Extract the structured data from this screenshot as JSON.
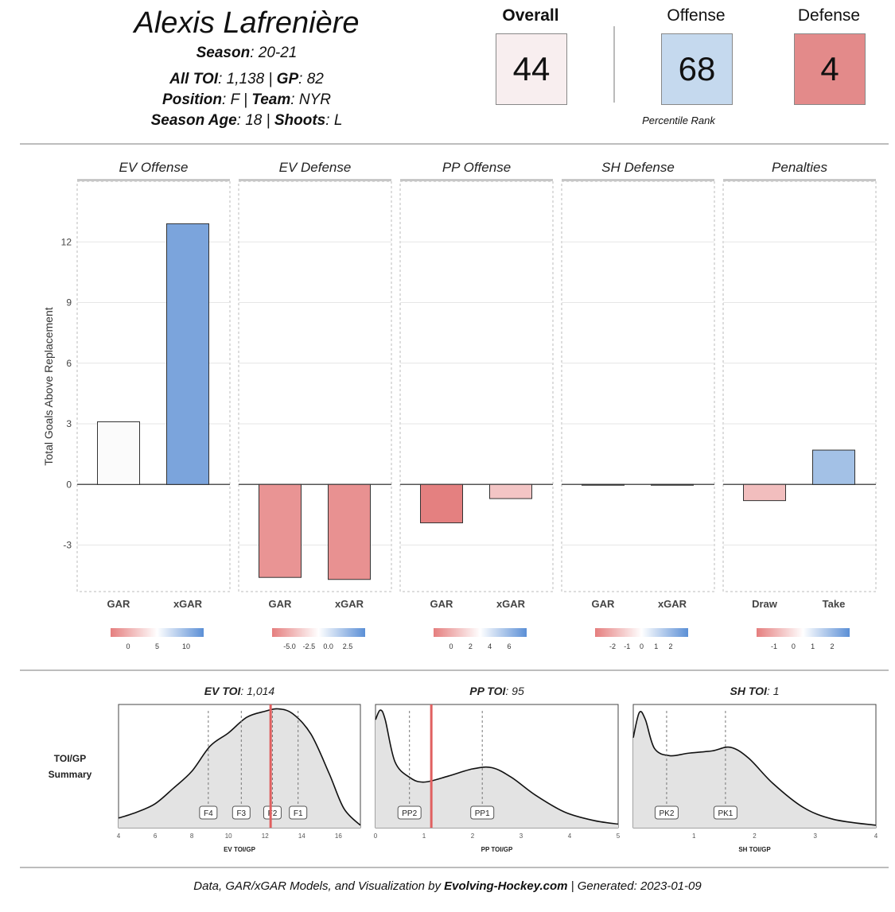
{
  "player": {
    "name": "Alexis Lafrenière",
    "season_label": "Season",
    "season": "20-21",
    "toi_label": "All TOI",
    "toi": "1,138",
    "gp_label": "GP",
    "gp": "82",
    "position_label": "Position",
    "position": "F",
    "team_label": "Team",
    "team": "NYR",
    "age_label": "Season Age",
    "age": "18",
    "shoots_label": "Shoots",
    "shoots": "L"
  },
  "ranks": {
    "overall_label": "Overall",
    "overall": "44",
    "offense_label": "Offense",
    "offense": "68",
    "defense_label": "Defense",
    "defense": "4",
    "subtitle": "Percentile Rank",
    "colors": {
      "overall": "#f8eeef",
      "offense": "#c5d9ee",
      "defense": "#e38a8a"
    }
  },
  "chart_data": [
    {
      "type": "bar",
      "ylabel": "Total Goals Above Replacement",
      "ylim": [
        -5.3,
        15
      ],
      "yticks": [
        -3,
        0,
        3,
        6,
        9,
        12
      ],
      "grid": true,
      "facets": [
        {
          "title": "EV Offense",
          "categories": [
            "GAR",
            "xGAR"
          ],
          "values": [
            3.1,
            12.9
          ],
          "colors": [
            "#fbfbfb",
            "#7ba4dc"
          ],
          "legend": {
            "ticks": [
              "0",
              "5",
              "10"
            ],
            "stops": [
              "#e57e7e",
              "#ffffff",
              "#5b8fd6"
            ]
          }
        },
        {
          "title": "EV Defense",
          "categories": [
            "GAR",
            "xGAR"
          ],
          "values": [
            -4.6,
            -4.7
          ],
          "colors": [
            "#e99494",
            "#e89191"
          ],
          "legend": {
            "ticks": [
              "-5.0",
              "-2.5",
              "0.0",
              "2.5"
            ],
            "stops": [
              "#e57e7e",
              "#ffffff",
              "#5b8fd6"
            ]
          }
        },
        {
          "title": "PP Offense",
          "categories": [
            "GAR",
            "xGAR"
          ],
          "values": [
            -1.9,
            -0.7
          ],
          "colors": [
            "#e48080",
            "#f3c5c5"
          ],
          "legend": {
            "ticks": [
              "0",
              "2",
              "4",
              "6"
            ],
            "stops": [
              "#e57e7e",
              "#ffffff",
              "#5b8fd6"
            ]
          }
        },
        {
          "title": "SH Defense",
          "categories": [
            "GAR",
            "xGAR"
          ],
          "values": [
            0.0,
            0.0
          ],
          "colors": [
            "#e57e7e",
            "#e57e7e"
          ],
          "legend": {
            "ticks": [
              "-2",
              "-1",
              "0",
              "1",
              "2"
            ],
            "stops": [
              "#e57e7e",
              "#ffffff",
              "#5b8fd6"
            ]
          }
        },
        {
          "title": "Penalties",
          "categories": [
            "Draw",
            "Take"
          ],
          "values": [
            -0.8,
            1.7
          ],
          "colors": [
            "#f2bebe",
            "#a3c1e6"
          ],
          "legend": {
            "ticks": [
              "-1",
              "0",
              "1",
              "2"
            ],
            "stops": [
              "#e57e7e",
              "#ffffff",
              "#5b8fd6"
            ]
          }
        }
      ]
    },
    {
      "type": "area",
      "side_label_1": "TOI/GP",
      "side_label_2": "Summary",
      "panels": [
        {
          "title_bold": "EV TOI",
          "title_value": "1,014",
          "xlabel": "EV TOI/GP",
          "xlim": [
            4,
            17.2
          ],
          "xticks": [
            4,
            6,
            8,
            10,
            12,
            14,
            16
          ],
          "player_value": 12.3,
          "refs": [
            {
              "label": "F4",
              "x": 8.9
            },
            {
              "label": "F3",
              "x": 10.7
            },
            {
              "label": "F2",
              "x": 12.4
            },
            {
              "label": "F1",
              "x": 13.8
            }
          ],
          "density": [
            [
              4,
              0.08
            ],
            [
              5,
              0.13
            ],
            [
              6,
              0.2
            ],
            [
              7,
              0.33
            ],
            [
              8,
              0.47
            ],
            [
              9,
              0.68
            ],
            [
              10,
              0.79
            ],
            [
              11,
              0.92
            ],
            [
              12,
              0.97
            ],
            [
              12.7,
              0.99
            ],
            [
              13.5,
              0.95
            ],
            [
              14.5,
              0.78
            ],
            [
              15.5,
              0.45
            ],
            [
              16.3,
              0.16
            ],
            [
              17.2,
              0.02
            ]
          ]
        },
        {
          "title_bold": "PP TOI",
          "title_value": "95",
          "xlabel": "PP TOI/GP",
          "xlim": [
            0,
            5
          ],
          "xticks": [
            0,
            1,
            2,
            3,
            4,
            5
          ],
          "player_value": 1.15,
          "refs": [
            {
              "label": "PP2",
              "x": 0.7
            },
            {
              "label": "PP1",
              "x": 2.2
            }
          ],
          "density": [
            [
              0,
              0.9
            ],
            [
              0.1,
              0.98
            ],
            [
              0.2,
              0.9
            ],
            [
              0.4,
              0.55
            ],
            [
              0.7,
              0.42
            ],
            [
              1.0,
              0.38
            ],
            [
              1.5,
              0.43
            ],
            [
              2.0,
              0.49
            ],
            [
              2.4,
              0.5
            ],
            [
              2.8,
              0.42
            ],
            [
              3.3,
              0.27
            ],
            [
              3.9,
              0.13
            ],
            [
              4.5,
              0.06
            ],
            [
              5,
              0.03
            ]
          ]
        },
        {
          "title_bold": "SH TOI",
          "title_value": "1",
          "xlabel": "SH TOI/GP",
          "xlim": [
            0,
            4
          ],
          "xticks": [
            1,
            2,
            3,
            4
          ],
          "player_value": null,
          "refs": [
            {
              "label": "PK2",
              "x": 0.55
            },
            {
              "label": "PK1",
              "x": 1.52
            }
          ],
          "density": [
            [
              0,
              0.75
            ],
            [
              0.1,
              0.96
            ],
            [
              0.2,
              0.9
            ],
            [
              0.35,
              0.66
            ],
            [
              0.6,
              0.6
            ],
            [
              0.9,
              0.62
            ],
            [
              1.3,
              0.64
            ],
            [
              1.6,
              0.67
            ],
            [
              1.9,
              0.58
            ],
            [
              2.3,
              0.37
            ],
            [
              2.8,
              0.17
            ],
            [
              3.3,
              0.07
            ],
            [
              4,
              0.02
            ]
          ]
        }
      ]
    }
  ],
  "footer": {
    "prefix": "Data, GAR/xGAR Models, and Visualization by ",
    "site": "Evolving-Hockey.com",
    "suffix": " | Generated: 2023-01-09"
  }
}
